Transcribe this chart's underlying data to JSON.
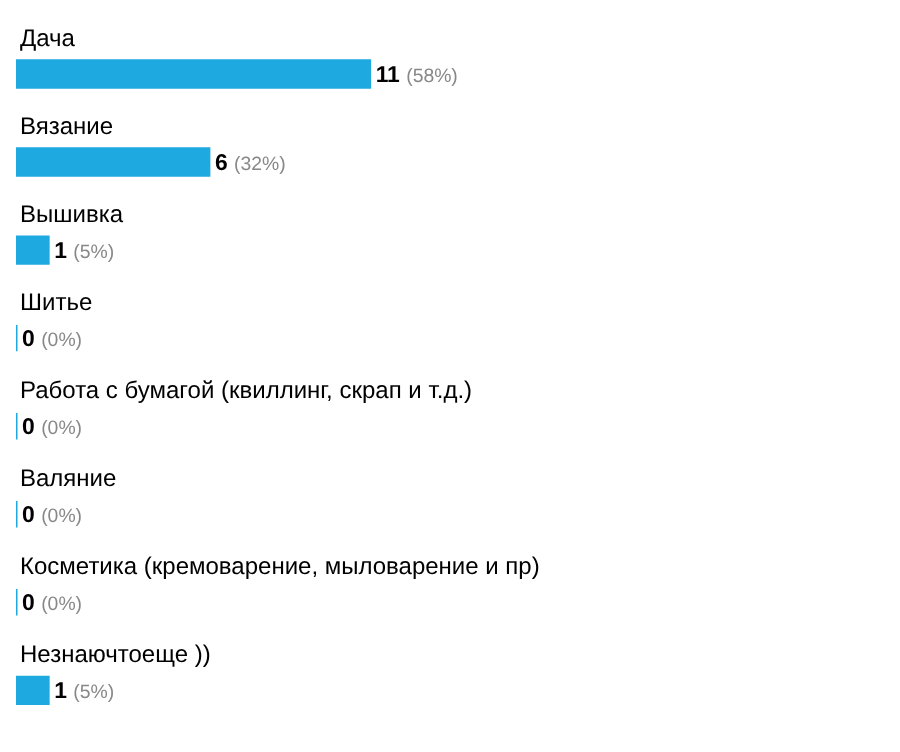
{
  "chart_data": {
    "type": "bar",
    "orientation": "horizontal",
    "categories": [
      "Дача",
      "Вязание",
      "Вышивка",
      "Шитье",
      "Работа с бумагой (квиллинг, скрап и т.д.)",
      "Валяние",
      "Косметика (кремоварение, мыловарение и пр)",
      "Незнаючтоеще ))"
    ],
    "values": [
      11,
      6,
      1,
      0,
      0,
      0,
      0,
      1
    ],
    "value_labels": [
      "11 (58%)",
      "6 (32%)",
      "1 (5%)",
      "0 (0%)",
      "0 (0%)",
      "0 (0%)",
      "0 (0%)",
      "1 (5%)"
    ],
    "color": "#1fa9e1",
    "tick_labels": false
  }
}
